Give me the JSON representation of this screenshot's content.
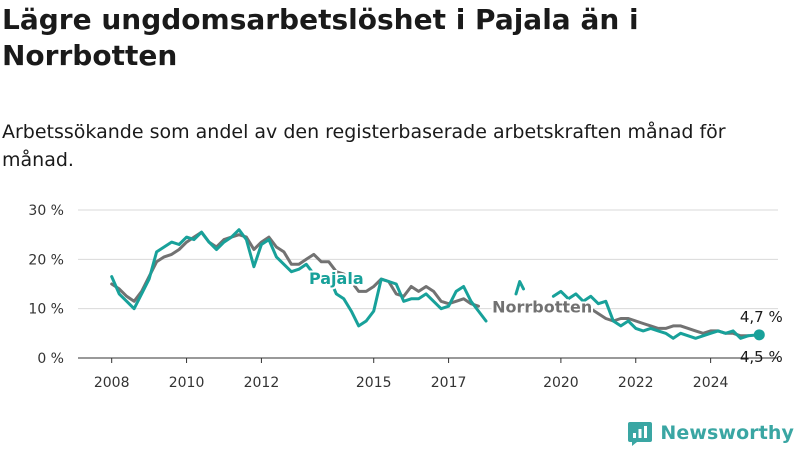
{
  "title": "Lägre ungdomsarbetslöshet i Pajala än i Norrbotten",
  "subtitle": "Arbetssökande som andel av den registerbaserade arbetskraften månad för månad.",
  "brand": "Newsworthy",
  "colors": {
    "pajala": "#18a19a",
    "norrbotten": "#727272",
    "grid": "#d9d9d9",
    "brand": "#3aa6a3"
  },
  "chart_data": {
    "type": "line",
    "title": "Lägre ungdomsarbetslöshet i Pajala än i Norrbotten",
    "subtitle": "Arbetssökande som andel av den registerbaserade arbetskraften månad för månad.",
    "ylim": [
      0,
      30
    ],
    "xlim": [
      2007.1,
      2025.8
    ],
    "y_ticks": [
      0,
      10,
      20,
      30
    ],
    "y_tick_labels": [
      "0 %",
      "10 %",
      "20 %",
      "30 %"
    ],
    "x_ticks": [
      2008,
      2010,
      2012,
      2015,
      2017,
      2020,
      2022,
      2024
    ],
    "x_tick_labels": [
      "2008",
      "2010",
      "2012",
      "2015",
      "2017",
      "2020",
      "2022",
      "2024"
    ],
    "grid": true,
    "series": [
      {
        "name": "Norrbotten",
        "end_label": "4,5 %",
        "segments": [
          [
            [
              2008.0,
              15.0
            ],
            [
              2008.2,
              14.0
            ],
            [
              2008.4,
              12.5
            ],
            [
              2008.6,
              11.5
            ],
            [
              2008.8,
              13.5
            ],
            [
              2009.0,
              16.5
            ],
            [
              2009.2,
              19.5
            ],
            [
              2009.4,
              20.5
            ],
            [
              2009.6,
              21.0
            ],
            [
              2009.8,
              22.0
            ],
            [
              2010.0,
              23.5
            ],
            [
              2010.2,
              24.5
            ],
            [
              2010.4,
              25.5
            ],
            [
              2010.6,
              23.5
            ],
            [
              2010.8,
              22.5
            ],
            [
              2011.0,
              24.0
            ],
            [
              2011.2,
              24.5
            ],
            [
              2011.4,
              25.0
            ],
            [
              2011.6,
              24.5
            ],
            [
              2011.8,
              22.0
            ],
            [
              2012.0,
              23.5
            ],
            [
              2012.2,
              24.5
            ],
            [
              2012.4,
              22.5
            ],
            [
              2012.6,
              21.5
            ],
            [
              2012.8,
              19.0
            ],
            [
              2013.0,
              19.0
            ],
            [
              2013.2,
              20.0
            ],
            [
              2013.4,
              21.0
            ],
            [
              2013.6,
              19.5
            ],
            [
              2013.8,
              19.5
            ],
            [
              2014.0,
              17.5
            ],
            [
              2014.2,
              17.0
            ],
            [
              2014.4,
              15.5
            ],
            [
              2014.6,
              13.5
            ],
            [
              2014.8,
              13.5
            ],
            [
              2015.0,
              14.5
            ],
            [
              2015.2,
              16.0
            ],
            [
              2015.4,
              15.5
            ],
            [
              2015.6,
              13.0
            ],
            [
              2015.8,
              12.5
            ],
            [
              2016.0,
              14.5
            ],
            [
              2016.2,
              13.5
            ],
            [
              2016.4,
              14.5
            ],
            [
              2016.6,
              13.5
            ],
            [
              2016.8,
              11.5
            ],
            [
              2017.0,
              11.0
            ],
            [
              2017.2,
              11.5
            ],
            [
              2017.4,
              12.0
            ],
            [
              2017.6,
              11.0
            ],
            [
              2017.8,
              10.5
            ]
          ],
          [
            [
              2020.8,
              10.0
            ],
            [
              2021.0,
              9.0
            ],
            [
              2021.2,
              8.0
            ],
            [
              2021.4,
              7.5
            ],
            [
              2021.6,
              8.0
            ],
            [
              2021.8,
              8.0
            ],
            [
              2022.0,
              7.5
            ],
            [
              2022.2,
              7.0
            ],
            [
              2022.4,
              6.5
            ],
            [
              2022.6,
              6.0
            ],
            [
              2022.8,
              6.0
            ],
            [
              2023.0,
              6.5
            ],
            [
              2023.2,
              6.5
            ],
            [
              2023.4,
              6.0
            ],
            [
              2023.6,
              5.5
            ],
            [
              2023.8,
              5.0
            ],
            [
              2024.0,
              5.5
            ],
            [
              2024.2,
              5.5
            ],
            [
              2024.4,
              5.0
            ],
            [
              2024.6,
              5.0
            ],
            [
              2024.8,
              4.5
            ],
            [
              2025.0,
              4.5
            ]
          ]
        ]
      },
      {
        "name": "Pajala",
        "end_label": "4,7 %",
        "segments": [
          [
            [
              2008.0,
              16.5
            ],
            [
              2008.2,
              13.0
            ],
            [
              2008.4,
              11.5
            ],
            [
              2008.6,
              10.0
            ],
            [
              2008.8,
              13.0
            ],
            [
              2009.0,
              16.0
            ],
            [
              2009.2,
              21.5
            ],
            [
              2009.4,
              22.5
            ],
            [
              2009.6,
              23.5
            ],
            [
              2009.8,
              23.0
            ],
            [
              2010.0,
              24.5
            ],
            [
              2010.2,
              24.0
            ],
            [
              2010.4,
              25.5
            ],
            [
              2010.6,
              23.5
            ],
            [
              2010.8,
              22.0
            ],
            [
              2011.0,
              23.5
            ],
            [
              2011.2,
              24.5
            ],
            [
              2011.4,
              26.0
            ],
            [
              2011.6,
              24.0
            ],
            [
              2011.8,
              18.5
            ],
            [
              2012.0,
              23.0
            ],
            [
              2012.2,
              24.0
            ],
            [
              2012.4,
              20.5
            ],
            [
              2012.6,
              19.0
            ],
            [
              2012.8,
              17.5
            ],
            [
              2013.0,
              18.0
            ],
            [
              2013.2,
              19.0
            ],
            [
              2013.4,
              17.0
            ],
            [
              2013.6,
              15.5
            ],
            [
              2013.8,
              16.5
            ],
            [
              2014.0,
              13.0
            ],
            [
              2014.2,
              12.0
            ],
            [
              2014.4,
              9.5
            ],
            [
              2014.6,
              6.5
            ],
            [
              2014.8,
              7.5
            ],
            [
              2015.0,
              9.5
            ],
            [
              2015.2,
              16.0
            ],
            [
              2015.4,
              15.5
            ],
            [
              2015.6,
              15.0
            ],
            [
              2015.8,
              11.5
            ],
            [
              2016.0,
              12.0
            ],
            [
              2016.2,
              12.0
            ],
            [
              2016.4,
              13.0
            ],
            [
              2016.6,
              11.5
            ],
            [
              2016.8,
              10.0
            ],
            [
              2017.0,
              10.5
            ],
            [
              2017.2,
              13.5
            ],
            [
              2017.4,
              14.5
            ],
            [
              2017.6,
              11.5
            ],
            [
              2017.8,
              9.5
            ],
            [
              2018.0,
              7.5
            ]
          ],
          [
            [
              2018.8,
              13.0
            ],
            [
              2018.9,
              15.5
            ],
            [
              2019.0,
              14.0
            ]
          ],
          [
            [
              2019.8,
              12.5
            ],
            [
              2020.0,
              13.5
            ],
            [
              2020.2,
              12.0
            ],
            [
              2020.4,
              13.0
            ],
            [
              2020.6,
              11.5
            ],
            [
              2020.8,
              12.5
            ],
            [
              2021.0,
              11.0
            ],
            [
              2021.2,
              11.5
            ],
            [
              2021.4,
              7.5
            ],
            [
              2021.6,
              6.5
            ],
            [
              2021.8,
              7.5
            ],
            [
              2022.0,
              6.0
            ],
            [
              2022.2,
              5.5
            ],
            [
              2022.4,
              6.0
            ],
            [
              2022.6,
              5.5
            ],
            [
              2022.8,
              5.0
            ],
            [
              2023.0,
              4.0
            ],
            [
              2023.2,
              5.0
            ],
            [
              2023.4,
              4.5
            ],
            [
              2023.6,
              4.0
            ],
            [
              2023.8,
              4.5
            ],
            [
              2024.0,
              5.0
            ],
            [
              2024.2,
              5.5
            ],
            [
              2024.4,
              5.0
            ],
            [
              2024.6,
              5.5
            ],
            [
              2024.8,
              4.0
            ],
            [
              2025.0,
              4.5
            ],
            [
              2025.3,
              4.7
            ]
          ]
        ]
      }
    ],
    "inline_labels": [
      {
        "text": "Pajala",
        "series": "Pajala",
        "x": 2014.0,
        "y": 15.0
      },
      {
        "text": "Norrbotten",
        "series": "Norrbotten",
        "x": 2019.5,
        "y": 9.2
      }
    ]
  }
}
